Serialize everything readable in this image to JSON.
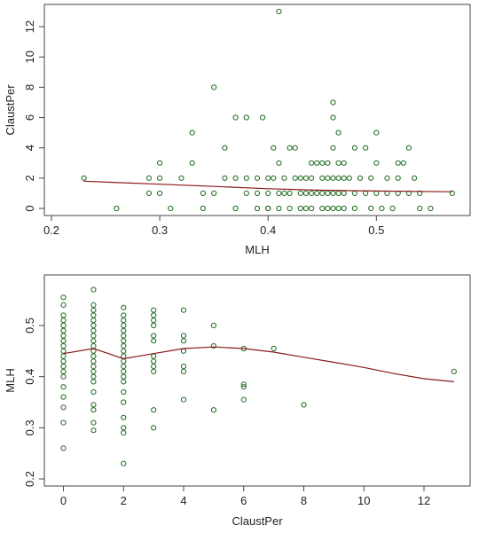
{
  "colors": {
    "points": "#1e6b1e",
    "smooth": "#8b1a1a",
    "axis": "#444444"
  },
  "chart_data": [
    {
      "type": "scatter",
      "title": "",
      "xlabel": "MLH",
      "ylabel": "ClaustPer",
      "xlim": [
        0.2,
        0.58
      ],
      "ylim": [
        0,
        13
      ],
      "xticks": [
        0.2,
        0.3,
        0.4,
        0.5
      ],
      "xtick_labels": [
        "0.2",
        "0.3",
        "0.4",
        "0.5"
      ],
      "yticks": [
        0,
        2,
        4,
        6,
        8,
        10,
        12
      ],
      "ytick_labels": [
        "0",
        "2",
        "4",
        "6",
        "8",
        "10",
        "12"
      ],
      "grid": false,
      "points": [
        [
          0.23,
          2
        ],
        [
          0.26,
          0
        ],
        [
          0.29,
          1
        ],
        [
          0.29,
          2
        ],
        [
          0.3,
          2
        ],
        [
          0.3,
          3
        ],
        [
          0.3,
          1
        ],
        [
          0.31,
          0
        ],
        [
          0.32,
          2
        ],
        [
          0.33,
          3
        ],
        [
          0.33,
          5
        ],
        [
          0.34,
          1
        ],
        [
          0.34,
          0
        ],
        [
          0.35,
          1
        ],
        [
          0.35,
          8
        ],
        [
          0.36,
          2
        ],
        [
          0.36,
          4
        ],
        [
          0.37,
          6
        ],
        [
          0.37,
          0
        ],
        [
          0.37,
          2
        ],
        [
          0.38,
          1
        ],
        [
          0.38,
          2
        ],
        [
          0.38,
          6
        ],
        [
          0.39,
          0
        ],
        [
          0.39,
          1
        ],
        [
          0.39,
          2
        ],
        [
          0.395,
          6
        ],
        [
          0.4,
          0
        ],
        [
          0.4,
          1
        ],
        [
          0.4,
          2
        ],
        [
          0.4,
          0
        ],
        [
          0.405,
          4
        ],
        [
          0.405,
          2
        ],
        [
          0.41,
          0
        ],
        [
          0.41,
          1
        ],
        [
          0.41,
          3
        ],
        [
          0.41,
          13
        ],
        [
          0.415,
          1
        ],
        [
          0.415,
          2
        ],
        [
          0.42,
          0
        ],
        [
          0.42,
          1
        ],
        [
          0.42,
          4
        ],
        [
          0.425,
          2
        ],
        [
          0.425,
          4
        ],
        [
          0.43,
          0
        ],
        [
          0.43,
          1
        ],
        [
          0.43,
          2
        ],
        [
          0.435,
          0
        ],
        [
          0.435,
          1
        ],
        [
          0.435,
          2
        ],
        [
          0.44,
          0
        ],
        [
          0.44,
          1
        ],
        [
          0.44,
          2
        ],
        [
          0.44,
          3
        ],
        [
          0.445,
          1
        ],
        [
          0.445,
          3
        ],
        [
          0.45,
          0
        ],
        [
          0.45,
          1
        ],
        [
          0.45,
          2
        ],
        [
          0.45,
          3
        ],
        [
          0.455,
          0
        ],
        [
          0.455,
          1
        ],
        [
          0.455,
          2
        ],
        [
          0.455,
          3
        ],
        [
          0.46,
          0
        ],
        [
          0.46,
          1
        ],
        [
          0.46,
          2
        ],
        [
          0.46,
          4
        ],
        [
          0.46,
          6
        ],
        [
          0.46,
          7
        ],
        [
          0.465,
          0
        ],
        [
          0.465,
          1
        ],
        [
          0.465,
          2
        ],
        [
          0.465,
          3
        ],
        [
          0.465,
          5
        ],
        [
          0.47,
          0
        ],
        [
          0.47,
          1
        ],
        [
          0.47,
          2
        ],
        [
          0.47,
          3
        ],
        [
          0.475,
          2
        ],
        [
          0.48,
          1
        ],
        [
          0.48,
          0
        ],
        [
          0.48,
          4
        ],
        [
          0.485,
          2
        ],
        [
          0.49,
          1
        ],
        [
          0.49,
          4
        ],
        [
          0.495,
          0
        ],
        [
          0.495,
          2
        ],
        [
          0.5,
          1
        ],
        [
          0.5,
          3
        ],
        [
          0.5,
          5
        ],
        [
          0.505,
          0
        ],
        [
          0.51,
          1
        ],
        [
          0.51,
          2
        ],
        [
          0.515,
          0
        ],
        [
          0.52,
          1
        ],
        [
          0.52,
          3
        ],
        [
          0.52,
          2
        ],
        [
          0.525,
          3
        ],
        [
          0.53,
          1
        ],
        [
          0.53,
          4
        ],
        [
          0.535,
          2
        ],
        [
          0.54,
          0
        ],
        [
          0.54,
          1
        ],
        [
          0.55,
          0
        ],
        [
          0.57,
          1
        ]
      ],
      "smooth": [
        [
          0.23,
          1.8
        ],
        [
          0.3,
          1.6
        ],
        [
          0.35,
          1.45
        ],
        [
          0.4,
          1.3
        ],
        [
          0.45,
          1.2
        ],
        [
          0.5,
          1.15
        ],
        [
          0.57,
          1.1
        ]
      ]
    },
    {
      "type": "scatter",
      "title": "",
      "xlabel": "ClaustPer",
      "ylabel": "MLH",
      "xlim": [
        -0.4,
        13.3
      ],
      "ylim": [
        0.2,
        0.585
      ],
      "xticks": [
        0,
        2,
        4,
        6,
        8,
        10,
        12
      ],
      "xtick_labels": [
        "0",
        "2",
        "4",
        "6",
        "8",
        "10",
        "12"
      ],
      "yticks": [
        0.2,
        0.3,
        0.4,
        0.5
      ],
      "ytick_labels": [
        "0.2",
        "0.3",
        "0.4",
        "0.5"
      ],
      "grid": false,
      "points": [
        [
          0,
          0.26
        ],
        [
          0,
          0.31
        ],
        [
          0,
          0.34
        ],
        [
          0,
          0.36
        ],
        [
          0,
          0.38
        ],
        [
          0,
          0.4
        ],
        [
          0,
          0.41
        ],
        [
          0,
          0.42
        ],
        [
          0,
          0.43
        ],
        [
          0,
          0.44
        ],
        [
          0,
          0.45
        ],
        [
          0,
          0.46
        ],
        [
          0,
          0.47
        ],
        [
          0,
          0.48
        ],
        [
          0,
          0.49
        ],
        [
          0,
          0.5
        ],
        [
          0,
          0.51
        ],
        [
          0,
          0.52
        ],
        [
          0,
          0.54
        ],
        [
          0,
          0.555
        ],
        [
          1,
          0.295
        ],
        [
          1,
          0.31
        ],
        [
          1,
          0.335
        ],
        [
          1,
          0.345
        ],
        [
          1,
          0.37
        ],
        [
          1,
          0.39
        ],
        [
          1,
          0.4
        ],
        [
          1,
          0.41
        ],
        [
          1,
          0.42
        ],
        [
          1,
          0.43
        ],
        [
          1,
          0.44
        ],
        [
          1,
          0.45
        ],
        [
          1,
          0.46
        ],
        [
          1,
          0.47
        ],
        [
          1,
          0.48
        ],
        [
          1,
          0.49
        ],
        [
          1,
          0.5
        ],
        [
          1,
          0.51
        ],
        [
          1,
          0.52
        ],
        [
          1,
          0.53
        ],
        [
          1,
          0.54
        ],
        [
          1,
          0.57
        ],
        [
          2,
          0.23
        ],
        [
          2,
          0.29
        ],
        [
          2,
          0.3
        ],
        [
          2,
          0.32
        ],
        [
          2,
          0.35
        ],
        [
          2,
          0.37
        ],
        [
          2,
          0.39
        ],
        [
          2,
          0.4
        ],
        [
          2,
          0.41
        ],
        [
          2,
          0.42
        ],
        [
          2,
          0.43
        ],
        [
          2,
          0.44
        ],
        [
          2,
          0.45
        ],
        [
          2,
          0.46
        ],
        [
          2,
          0.47
        ],
        [
          2,
          0.48
        ],
        [
          2,
          0.49
        ],
        [
          2,
          0.5
        ],
        [
          2,
          0.51
        ],
        [
          2,
          0.52
        ],
        [
          2,
          0.535
        ],
        [
          3,
          0.3
        ],
        [
          3,
          0.335
        ],
        [
          3,
          0.41
        ],
        [
          3,
          0.42
        ],
        [
          3,
          0.43
        ],
        [
          3,
          0.44
        ],
        [
          3,
          0.47
        ],
        [
          3,
          0.48
        ],
        [
          3,
          0.5
        ],
        [
          3,
          0.51
        ],
        [
          3,
          0.52
        ],
        [
          3,
          0.53
        ],
        [
          4,
          0.355
        ],
        [
          4,
          0.41
        ],
        [
          4,
          0.42
        ],
        [
          4,
          0.45
        ],
        [
          4,
          0.47
        ],
        [
          4,
          0.48
        ],
        [
          4,
          0.53
        ],
        [
          5,
          0.335
        ],
        [
          5,
          0.46
        ],
        [
          5,
          0.5
        ],
        [
          6,
          0.355
        ],
        [
          6,
          0.38
        ],
        [
          6,
          0.385
        ],
        [
          6,
          0.455
        ],
        [
          7,
          0.455
        ],
        [
          8,
          0.345
        ],
        [
          13,
          0.41
        ]
      ],
      "smooth": [
        [
          0,
          0.445
        ],
        [
          1,
          0.455
        ],
        [
          2,
          0.435
        ],
        [
          3,
          0.445
        ],
        [
          4,
          0.455
        ],
        [
          5,
          0.458
        ],
        [
          6,
          0.455
        ],
        [
          7,
          0.448
        ],
        [
          8,
          0.438
        ],
        [
          9,
          0.428
        ],
        [
          10,
          0.418
        ],
        [
          11,
          0.406
        ],
        [
          12,
          0.396
        ],
        [
          13,
          0.39
        ]
      ]
    }
  ]
}
